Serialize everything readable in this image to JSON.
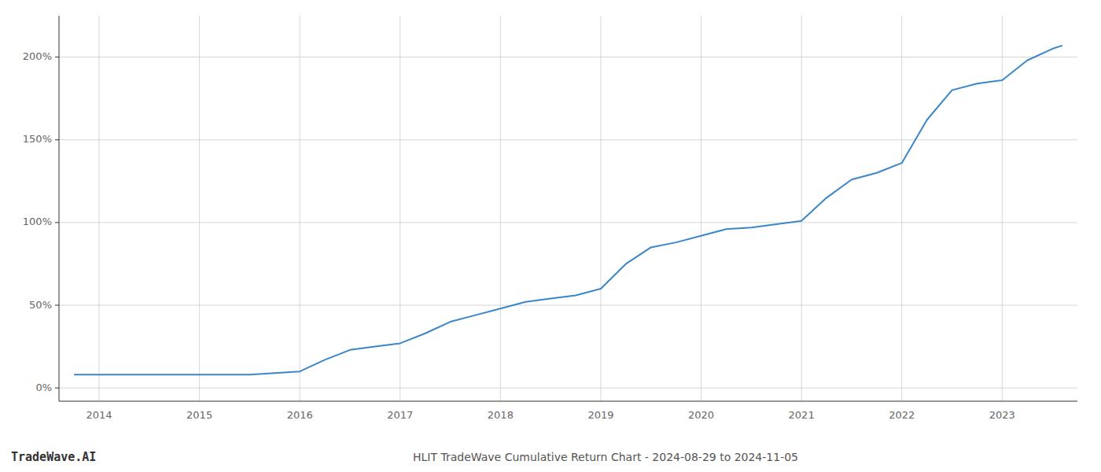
{
  "chart_data": {
    "type": "line",
    "title": "HLIT TradeWave Cumulative Return Chart - 2024-08-29 to 2024-11-05",
    "watermark": "TradeWave.AI",
    "color": "#3a86c8",
    "grid": true,
    "x": [
      2013.75,
      2014.0,
      2014.25,
      2014.5,
      2014.75,
      2015.0,
      2015.25,
      2015.5,
      2015.75,
      2016.0,
      2016.25,
      2016.5,
      2016.75,
      2017.0,
      2017.25,
      2017.5,
      2017.75,
      2018.0,
      2018.25,
      2018.5,
      2018.75,
      2019.0,
      2019.25,
      2019.5,
      2019.75,
      2020.0,
      2020.25,
      2020.5,
      2020.75,
      2021.0,
      2021.25,
      2021.5,
      2021.75,
      2022.0,
      2022.25,
      2022.5,
      2022.75,
      2023.0,
      2023.25,
      2023.5,
      2023.6
    ],
    "values": [
      8,
      8,
      8,
      8,
      8,
      8,
      8,
      8,
      9,
      10,
      17,
      23,
      25,
      27,
      33,
      40,
      44,
      48,
      52,
      54,
      56,
      60,
      75,
      85,
      88,
      92,
      96,
      97,
      99,
      101,
      115,
      126,
      130,
      136,
      162,
      180,
      184,
      186,
      198,
      205,
      207
    ],
    "xlim": [
      2013.6,
      2023.75
    ],
    "ylim": [
      -8,
      225
    ],
    "xticks": [
      2014,
      2015,
      2016,
      2017,
      2018,
      2019,
      2020,
      2021,
      2022,
      2023
    ],
    "yticks": [
      {
        "value": 0,
        "label": "0%"
      },
      {
        "value": 50,
        "label": "50%"
      },
      {
        "value": 100,
        "label": "100%"
      },
      {
        "value": 150,
        "label": "150%"
      },
      {
        "value": 200,
        "label": "200%"
      }
    ]
  }
}
